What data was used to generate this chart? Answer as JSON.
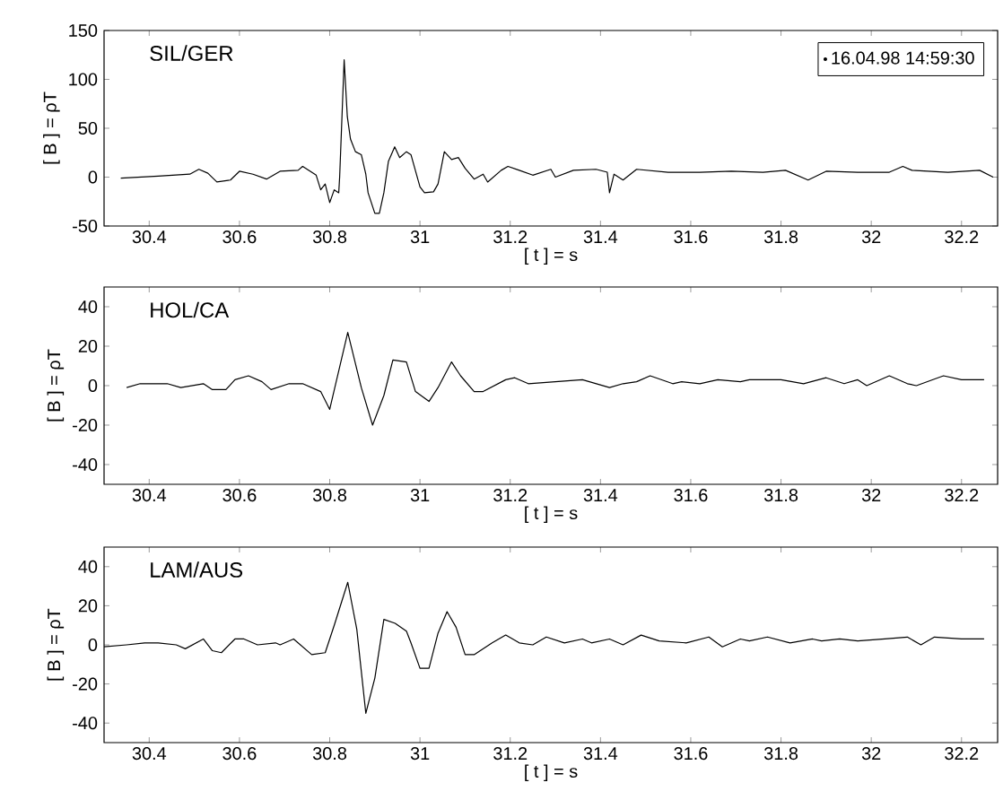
{
  "chart_data": [
    {
      "type": "line",
      "title": "SIL/GER",
      "xlabel": "[ t ] = s",
      "ylabel": "[ B ] = ρT",
      "legend": "top right",
      "xlim": [
        30.3,
        32.28
      ],
      "ylim": [
        -50,
        150
      ],
      "xticks": [
        30.4,
        30.6,
        30.8,
        31,
        31.2,
        31.4,
        31.6,
        31.8,
        32,
        32.2
      ],
      "yticks": [
        -50,
        0,
        50,
        100,
        150
      ],
      "series": [
        {
          "name": "16.04.98 14:59:30",
          "color": "#000000",
          "x": [
            30.337,
            30.42,
            30.49,
            30.51,
            30.53,
            30.55,
            30.58,
            30.6,
            30.63,
            30.66,
            30.69,
            30.73,
            30.74,
            30.77,
            30.78,
            30.79,
            30.8,
            30.81,
            30.82,
            30.822,
            30.832,
            30.839,
            30.846,
            30.857,
            30.87,
            30.88,
            30.885,
            30.9,
            30.91,
            30.92,
            30.93,
            30.944,
            30.955,
            30.97,
            30.98,
            31.0,
            31.01,
            31.03,
            31.04,
            31.054,
            31.07,
            31.085,
            31.1,
            31.12,
            31.14,
            31.15,
            31.18,
            31.195,
            31.22,
            31.25,
            31.29,
            31.3,
            31.34,
            31.39,
            31.415,
            31.42,
            31.43,
            31.45,
            31.48,
            31.55,
            31.62,
            31.69,
            31.76,
            31.81,
            31.86,
            31.9,
            31.97,
            32.04,
            32.07,
            32.09,
            32.17,
            32.24,
            32.27
          ],
          "values": [
            -1,
            1,
            3,
            8,
            4,
            -5,
            -3,
            6,
            3,
            -2,
            6,
            7,
            11,
            2,
            -13,
            -7,
            -26,
            -13,
            -16,
            0,
            120,
            62,
            39,
            26,
            23,
            3,
            -16,
            -37,
            -37,
            -16,
            16,
            31,
            20,
            26,
            23,
            -10,
            -16,
            -15,
            -7,
            26,
            18,
            20,
            9,
            -2,
            3,
            -5,
            7,
            11,
            7,
            2,
            8,
            0,
            7,
            8,
            5,
            -16,
            3,
            -3,
            8,
            5,
            5,
            6,
            5,
            7,
            -3,
            6,
            5,
            5,
            11,
            7,
            5,
            7,
            0
          ]
        }
      ]
    },
    {
      "type": "line",
      "title": "HOL/CA",
      "xlabel": "[ t ] = s",
      "ylabel": "[ B ] = ρT",
      "xlim": [
        30.3,
        32.28
      ],
      "ylim": [
        -50,
        50
      ],
      "xticks": [
        30.4,
        30.6,
        30.8,
        31,
        31.2,
        31.4,
        31.6,
        31.8,
        32,
        32.2
      ],
      "yticks": [
        -40,
        -20,
        0,
        20,
        40
      ],
      "series": [
        {
          "color": "#000000",
          "x": [
            30.35,
            30.38,
            30.44,
            30.47,
            30.52,
            30.54,
            30.57,
            30.59,
            30.62,
            30.65,
            30.67,
            30.71,
            30.74,
            30.78,
            30.8,
            30.84,
            30.87,
            30.895,
            30.92,
            30.94,
            30.97,
            30.99,
            31.02,
            31.04,
            31.07,
            31.09,
            31.12,
            31.14,
            31.19,
            31.21,
            31.24,
            31.3,
            31.36,
            31.42,
            31.45,
            31.48,
            31.51,
            31.56,
            31.58,
            31.62,
            31.66,
            31.71,
            31.73,
            31.8,
            31.85,
            31.9,
            31.94,
            31.97,
            31.99,
            32.04,
            32.08,
            32.1,
            32.16,
            32.2,
            32.25
          ],
          "values": [
            -1,
            1,
            1,
            -1,
            1,
            -2,
            -2,
            3,
            5,
            2,
            -2,
            1,
            1,
            -3,
            -12,
            27,
            -1,
            -20,
            -5,
            13,
            12,
            -3,
            -8,
            -1,
            12,
            5,
            -3,
            -3,
            3,
            4,
            1,
            2,
            3,
            -1,
            1,
            2,
            5,
            1,
            2,
            1,
            3,
            2,
            3,
            3,
            1,
            4,
            1,
            3,
            0,
            5,
            1,
            0,
            5,
            3,
            3
          ]
        }
      ]
    },
    {
      "type": "line",
      "title": "LAM/AUS",
      "xlabel": "[ t ] = s",
      "ylabel": "[ B ] = ρT",
      "xlim": [
        30.3,
        32.28
      ],
      "ylim": [
        -50,
        50
      ],
      "xticks": [
        30.4,
        30.6,
        30.8,
        31,
        31.2,
        31.4,
        31.6,
        31.8,
        32,
        32.2
      ],
      "yticks": [
        -40,
        -20,
        0,
        20,
        40
      ],
      "series": [
        {
          "color": "#000000",
          "x": [
            30.3,
            30.35,
            30.39,
            30.42,
            30.46,
            30.48,
            30.52,
            30.54,
            30.56,
            30.59,
            30.61,
            30.64,
            30.68,
            30.69,
            30.72,
            30.76,
            30.79,
            30.81,
            30.84,
            30.86,
            30.88,
            30.9,
            30.92,
            30.945,
            30.97,
            30.98,
            31.0,
            31.02,
            31.04,
            31.06,
            31.08,
            31.1,
            31.12,
            31.16,
            31.19,
            31.22,
            31.25,
            31.28,
            31.32,
            31.36,
            31.38,
            31.42,
            31.45,
            31.49,
            31.53,
            31.59,
            31.64,
            31.67,
            31.71,
            31.73,
            31.77,
            31.82,
            31.87,
            31.89,
            31.93,
            31.97,
            32.03,
            32.08,
            32.11,
            32.14,
            32.2,
            32.25
          ],
          "values": [
            -1,
            0,
            1,
            1,
            0,
            -2,
            3,
            -3,
            -4,
            3,
            3,
            0,
            1,
            0,
            3,
            -5,
            -4,
            10,
            32,
            8,
            -35,
            -17,
            13,
            11,
            7,
            1,
            -12,
            -12,
            6,
            17,
            9,
            -5,
            -5,
            1,
            5,
            1,
            0,
            4,
            1,
            3,
            1,
            3,
            0,
            5,
            2,
            1,
            4,
            -1,
            3,
            2,
            4,
            1,
            3,
            2,
            3,
            2,
            3,
            4,
            0,
            4,
            3,
            3
          ]
        }
      ]
    }
  ]
}
